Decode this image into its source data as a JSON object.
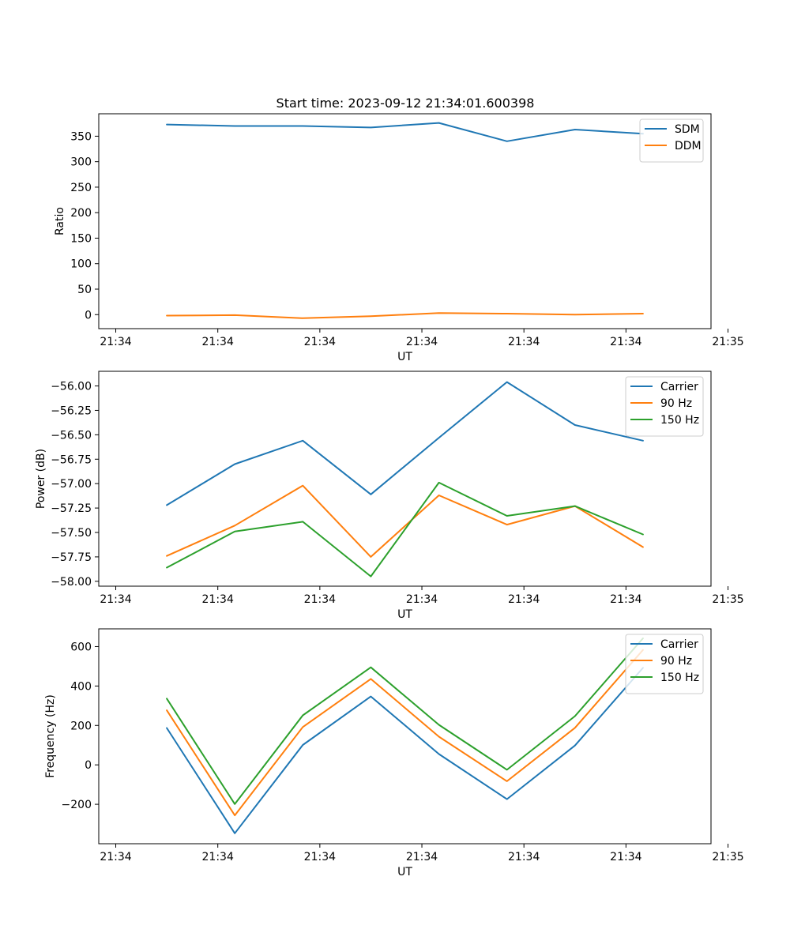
{
  "figure_title": "Start time: 2023-09-12 21:34:01.600398",
  "colors": {
    "blue": "#1f77b4",
    "orange": "#ff7f0e",
    "green": "#2ca02c"
  },
  "chart_data": [
    {
      "type": "line",
      "title": "Start time: 2023-09-12 21:34:01.600398",
      "xlabel": "UT",
      "ylabel": "Ratio",
      "xlim": [
        0,
        18
      ],
      "x_ticks": [
        0.5,
        3.5,
        6.5,
        9.5,
        12.5,
        15.5,
        18.5
      ],
      "x_tick_labels": [
        "21:34",
        "21:34",
        "21:34",
        "21:34",
        "21:34",
        "21:34",
        "21:35"
      ],
      "ylim": [
        -27.5,
        394
      ],
      "y_ticks": [
        0,
        50,
        100,
        150,
        200,
        250,
        300,
        350
      ],
      "y_tick_labels": [
        "0",
        "50",
        "100",
        "150",
        "200",
        "250",
        "300",
        "350"
      ],
      "legend_position": "top-right",
      "x": [
        2,
        4,
        6,
        8,
        10,
        12,
        14,
        16
      ],
      "series": [
        {
          "name": "SDM",
          "color": "#1f77b4",
          "values": [
            373,
            370,
            370,
            367,
            376,
            340,
            363,
            355
          ]
        },
        {
          "name": "DDM",
          "color": "#ff7f0e",
          "values": [
            -2,
            -1,
            -7,
            -3,
            3,
            2,
            0,
            2
          ]
        }
      ]
    },
    {
      "type": "line",
      "title": "",
      "xlabel": "UT",
      "ylabel": "Power (dB)",
      "xlim": [
        0,
        18
      ],
      "x_ticks": [
        0.5,
        3.5,
        6.5,
        9.5,
        12.5,
        15.5,
        18.5
      ],
      "x_tick_labels": [
        "21:34",
        "21:34",
        "21:34",
        "21:34",
        "21:34",
        "21:34",
        "21:35"
      ],
      "ylim": [
        -58.05,
        -55.85
      ],
      "y_ticks": [
        -58.0,
        -57.75,
        -57.5,
        -57.25,
        -57.0,
        -56.75,
        -56.5,
        -56.25,
        -56.0
      ],
      "y_tick_labels": [
        "−58.00",
        "−57.75",
        "−57.50",
        "−57.25",
        "−57.00",
        "−56.75",
        "−56.50",
        "−56.25",
        "−56.00"
      ],
      "legend_position": "top-right",
      "x": [
        2,
        4,
        6,
        8,
        10,
        12,
        14,
        16
      ],
      "series": [
        {
          "name": "Carrier",
          "color": "#1f77b4",
          "values": [
            -57.22,
            -56.8,
            -56.56,
            -57.11,
            -56.53,
            -55.96,
            -56.4,
            -56.56
          ]
        },
        {
          "name": "90 Hz",
          "color": "#ff7f0e",
          "values": [
            -57.74,
            -57.43,
            -57.02,
            -57.75,
            -57.12,
            -57.42,
            -57.23,
            -57.65
          ]
        },
        {
          "name": "150 Hz",
          "color": "#2ca02c",
          "values": [
            -57.86,
            -57.49,
            -57.39,
            -57.95,
            -56.99,
            -57.33,
            -57.23,
            -57.52
          ]
        }
      ]
    },
    {
      "type": "line",
      "title": "",
      "xlabel": "UT",
      "ylabel": "Frequency (Hz)",
      "xlim": [
        0,
        18
      ],
      "x_ticks": [
        0.5,
        3.5,
        6.5,
        9.5,
        12.5,
        15.5,
        18.5
      ],
      "x_tick_labels": [
        "21:34",
        "21:34",
        "21:34",
        "21:34",
        "21:34",
        "21:34",
        "21:35"
      ],
      "ylim": [
        -400,
        690
      ],
      "y_ticks": [
        -200,
        0,
        200,
        400,
        600
      ],
      "y_tick_labels": [
        "−200",
        "0",
        "200",
        "400",
        "600"
      ],
      "legend_position": "top-right",
      "x": [
        2,
        4,
        6,
        8,
        10,
        12,
        14,
        16
      ],
      "series": [
        {
          "name": "Carrier",
          "color": "#1f77b4",
          "values": [
            187,
            -347,
            101,
            347,
            55,
            -174,
            98,
            492
          ]
        },
        {
          "name": "90 Hz",
          "color": "#ff7f0e",
          "values": [
            277,
            -256,
            192,
            436,
            143,
            -83,
            188,
            583
          ]
        },
        {
          "name": "150 Hz",
          "color": "#2ca02c",
          "values": [
            336,
            -199,
            251,
            495,
            203,
            -25,
            247,
            642
          ]
        }
      ]
    }
  ]
}
